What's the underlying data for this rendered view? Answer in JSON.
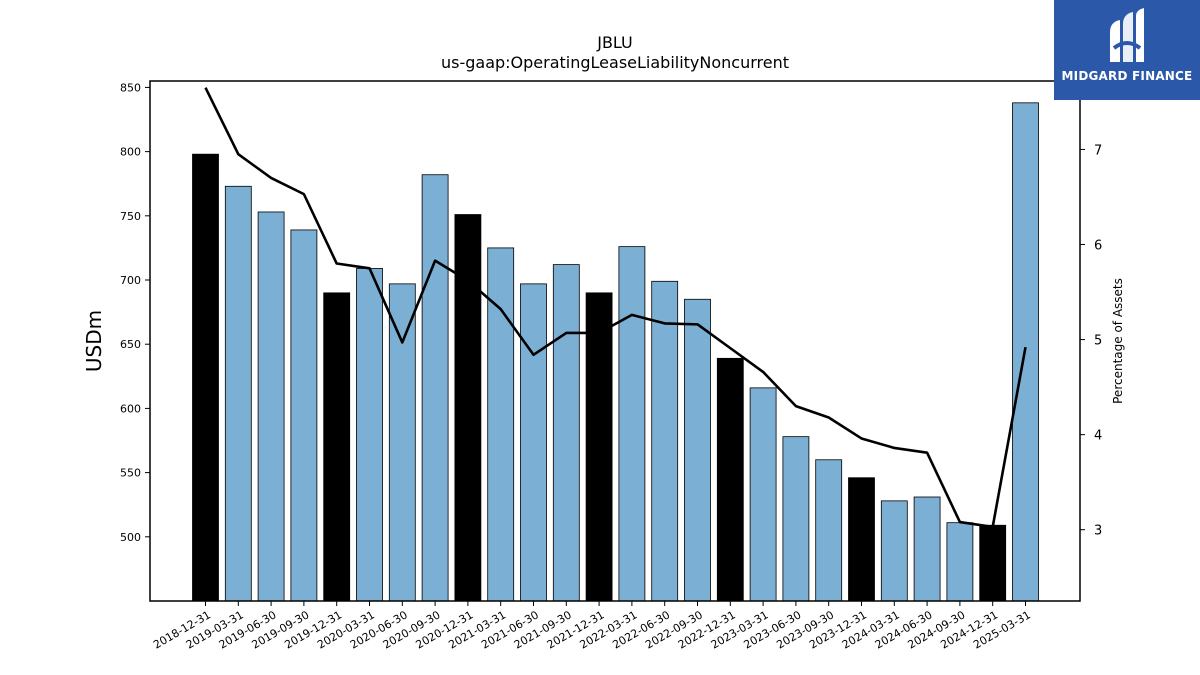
{
  "chart_data": {
    "type": "bar",
    "title": "JBLU",
    "subtitle": "us-gaap:OperatingLeaseLiabilityNoncurrent",
    "ylabel": "USDm",
    "y2label": "Percentage of Assets",
    "ylim": [
      450,
      855
    ],
    "y2lim": [
      2.25,
      7.72
    ],
    "yticks": [
      500,
      550,
      600,
      650,
      700,
      750,
      800,
      850
    ],
    "y2ticks": [
      3,
      4,
      5,
      6,
      7
    ],
    "grid": false,
    "categories": [
      "2018-12-31",
      "2019-03-31",
      "2019-06-30",
      "2019-09-30",
      "2019-12-31",
      "2020-03-31",
      "2020-06-30",
      "2020-09-30",
      "2020-12-31",
      "2021-03-31",
      "2021-06-30",
      "2021-09-30",
      "2021-12-31",
      "2022-03-31",
      "2022-06-30",
      "2022-09-30",
      "2022-12-31",
      "2023-03-31",
      "2023-06-30",
      "2023-09-30",
      "2023-12-31",
      "2024-03-31",
      "2024-06-30",
      "2024-09-30",
      "2024-12-31",
      "2025-03-31"
    ],
    "series": [
      {
        "kind": "bar",
        "values": [
          798,
          773,
          753,
          739,
          690,
          709,
          697,
          782,
          751,
          725,
          697,
          712,
          690,
          726,
          699,
          685,
          639,
          616,
          578,
          560,
          546,
          528,
          531,
          511,
          509,
          838
        ],
        "colors": [
          "#000000",
          "#7bafd4",
          "#7bafd4",
          "#7bafd4",
          "#000000",
          "#7bafd4",
          "#7bafd4",
          "#7bafd4",
          "#000000",
          "#7bafd4",
          "#7bafd4",
          "#7bafd4",
          "#000000",
          "#7bafd4",
          "#7bafd4",
          "#7bafd4",
          "#000000",
          "#7bafd4",
          "#7bafd4",
          "#7bafd4",
          "#000000",
          "#7bafd4",
          "#7bafd4",
          "#7bafd4",
          "#000000",
          "#7bafd4"
        ]
      },
      {
        "kind": "line",
        "axis": "right",
        "values": [
          7.65,
          6.95,
          6.7,
          6.53,
          5.8,
          5.75,
          4.97,
          5.83,
          5.62,
          5.32,
          4.84,
          5.07,
          5.07,
          5.26,
          5.17,
          5.16,
          4.91,
          4.66,
          4.3,
          4.18,
          3.96,
          3.86,
          3.81,
          3.08,
          3.03,
          4.92
        ],
        "color": "#000000"
      }
    ],
    "annual_color": "#000000",
    "quarter_color": "#7bafd4"
  },
  "logo": {
    "brand": "MIDGARD FINANCE",
    "background": "#2b58a8"
  }
}
